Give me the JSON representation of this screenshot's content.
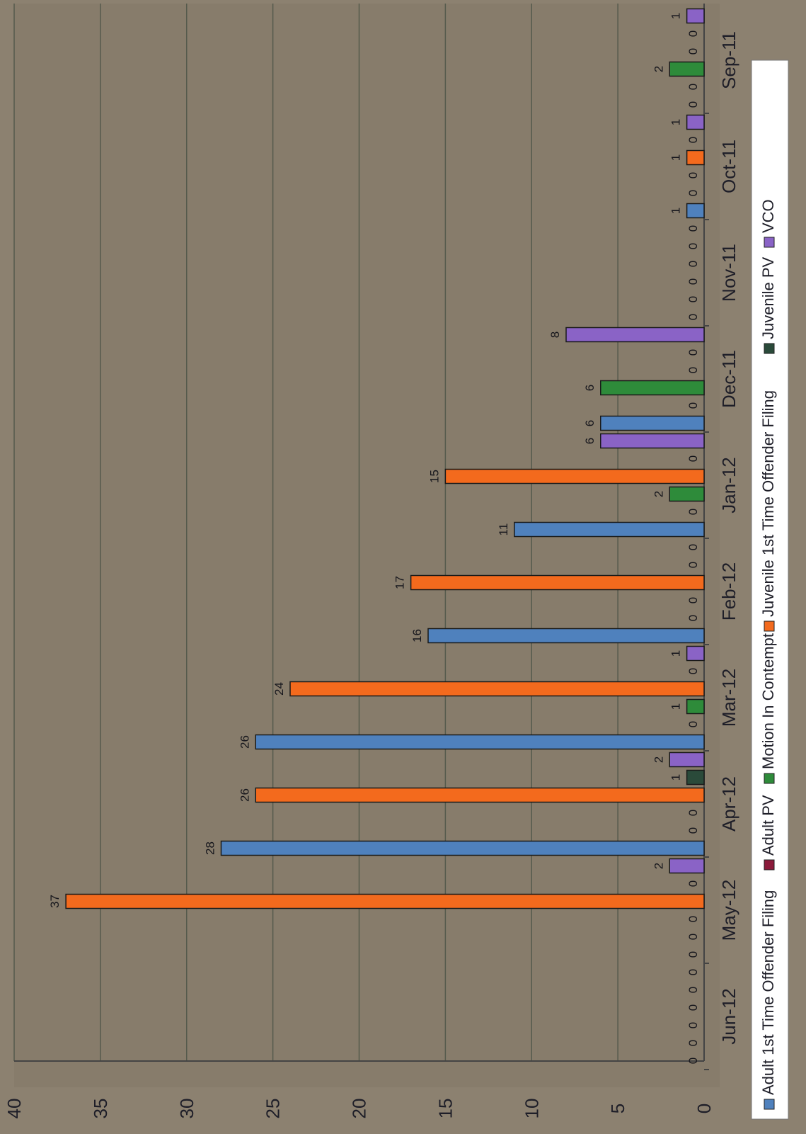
{
  "chart_data": {
    "type": "bar",
    "orientation": "rotated",
    "categories": [
      "Sep-11",
      "Oct-11",
      "Nov-11",
      "Dec-11",
      "Jan-12",
      "Feb-12",
      "Mar-12",
      "Apr-12",
      "May-12",
      "Jun-12"
    ],
    "series": [
      {
        "name": "Adult 1st Time Offender Filing",
        "color": "#4f81bd",
        "values": [
          0,
          1,
          0,
          6,
          11,
          16,
          26,
          28,
          0,
          0
        ]
      },
      {
        "name": "Adult PV",
        "color": "#8b1a3a",
        "values": [
          0,
          0,
          0,
          0,
          0,
          0,
          0,
          0,
          0,
          0
        ]
      },
      {
        "name": "Motion In Contempt",
        "color": "#2e8b3a",
        "values": [
          2,
          0,
          0,
          6,
          2,
          0,
          1,
          0,
          0,
          0
        ]
      },
      {
        "name": "Juvenile 1st Time Offender Filing",
        "color": "#f36a1d",
        "values": [
          0,
          1,
          0,
          0,
          15,
          17,
          24,
          26,
          37,
          0
        ]
      },
      {
        "name": "Juvenile PV",
        "color": "#2a4a3a",
        "values": [
          0,
          0,
          0,
          0,
          0,
          0,
          0,
          1,
          0,
          0
        ]
      },
      {
        "name": "VCO",
        "color": "#8a63c6",
        "values": [
          1,
          1,
          0,
          8,
          6,
          0,
          1,
          2,
          2,
          0
        ]
      }
    ],
    "ylim": [
      0,
      40
    ],
    "yticks": [
      0,
      5,
      10,
      15,
      20,
      25,
      30,
      35,
      40
    ],
    "grid": true,
    "legend": "bottom",
    "title": "",
    "xlabel": "",
    "ylabel": ""
  }
}
